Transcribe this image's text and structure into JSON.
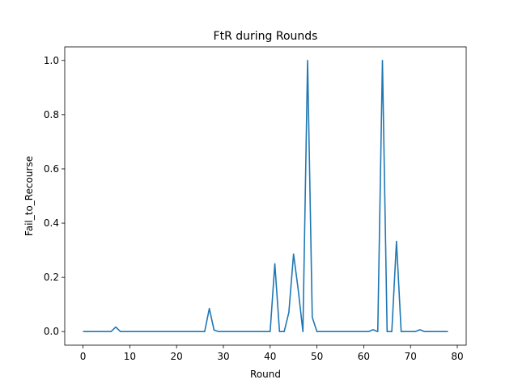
{
  "chart_data": {
    "type": "line",
    "title": "FtR during Rounds",
    "xlabel": "Round",
    "ylabel": "Fail_to_Recourse",
    "xlim": [
      -3.9,
      81.9
    ],
    "ylim": [
      -0.05,
      1.05
    ],
    "xticks": [
      0,
      10,
      20,
      30,
      40,
      50,
      60,
      70,
      80
    ],
    "yticks": [
      0.0,
      0.2,
      0.4,
      0.6,
      0.8,
      1.0
    ],
    "xtick_labels": [
      "0",
      "10",
      "20",
      "30",
      "40",
      "50",
      "60",
      "70",
      "80"
    ],
    "ytick_labels": [
      "0.0",
      "0.2",
      "0.4",
      "0.6",
      "0.8",
      "1.0"
    ],
    "grid": false,
    "series": [
      {
        "color": "#1f77b4",
        "x": [
          0,
          1,
          2,
          3,
          4,
          5,
          6,
          7,
          8,
          9,
          10,
          11,
          12,
          13,
          14,
          15,
          16,
          17,
          18,
          19,
          20,
          21,
          22,
          23,
          24,
          25,
          26,
          27,
          28,
          29,
          30,
          31,
          32,
          33,
          34,
          35,
          36,
          37,
          38,
          39,
          40,
          41,
          42,
          43,
          44,
          45,
          46,
          47,
          48,
          49,
          50,
          51,
          52,
          53,
          54,
          55,
          56,
          57,
          58,
          59,
          60,
          61,
          62,
          63,
          64,
          65,
          66,
          67,
          68,
          69,
          70,
          71,
          72,
          73,
          74,
          75,
          76,
          77,
          78
        ],
        "values": [
          0,
          0,
          0,
          0,
          0,
          0,
          0,
          0.017,
          0,
          0,
          0,
          0,
          0,
          0,
          0,
          0,
          0,
          0,
          0,
          0,
          0,
          0,
          0,
          0,
          0,
          0,
          0,
          0.085,
          0.006,
          0,
          0,
          0,
          0,
          0,
          0,
          0,
          0,
          0,
          0,
          0,
          0,
          0.25,
          0,
          0,
          0.071,
          0.286,
          0.154,
          0,
          1.0,
          0.053,
          0,
          0,
          0,
          0,
          0,
          0,
          0,
          0,
          0,
          0,
          0,
          0,
          0.007,
          0,
          1.0,
          0,
          0,
          0.333,
          0,
          0,
          0,
          0,
          0.007,
          0,
          0,
          0,
          0,
          0,
          0
        ]
      }
    ]
  }
}
